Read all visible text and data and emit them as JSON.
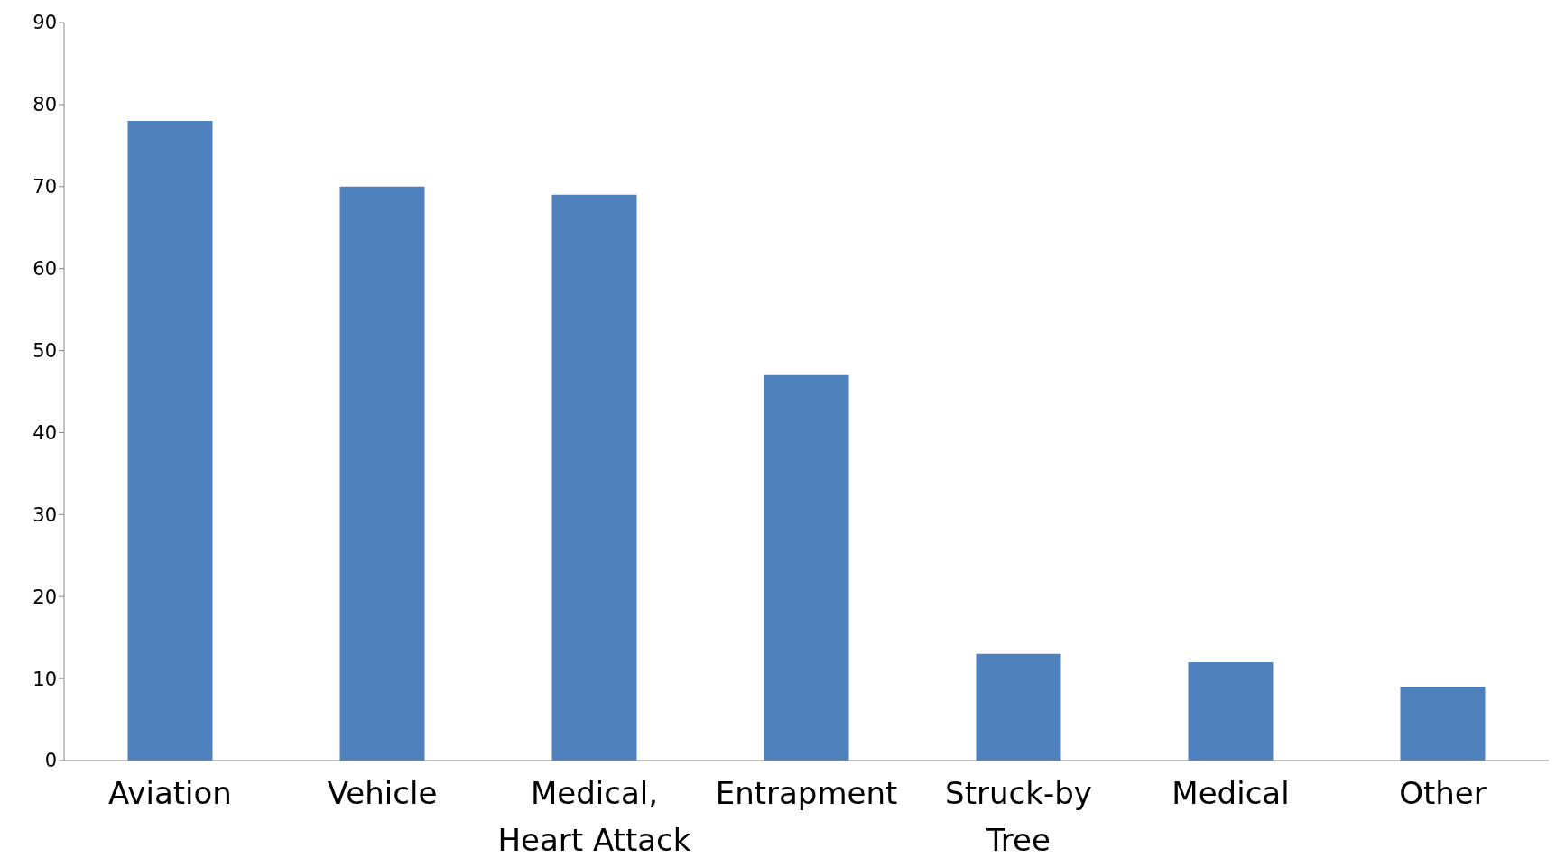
{
  "chart_data": {
    "type": "bar",
    "categories": [
      "Aviation",
      "Vehicle",
      "Medical, Heart Attack",
      "Entrapment",
      "Struck-by Tree",
      "Medical",
      "Other"
    ],
    "values": [
      78,
      70,
      69,
      47,
      13,
      12,
      9
    ],
    "color": "#4f81bd",
    "ylim": [
      0,
      90
    ],
    "yticks": [
      0,
      10,
      20,
      30,
      40,
      50,
      60,
      70,
      80,
      90
    ],
    "grid": false,
    "legend": false
  }
}
